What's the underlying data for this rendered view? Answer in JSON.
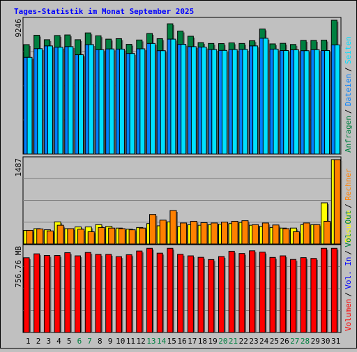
{
  "chart_data": {
    "type": "bar",
    "title": "Tages-Statistik im Monat September 2025",
    "categories": [
      "1",
      "2",
      "3",
      "4",
      "5",
      "6",
      "7",
      "8",
      "9",
      "10",
      "11",
      "12",
      "13",
      "14",
      "15",
      "16",
      "17",
      "18",
      "19",
      "20",
      "21",
      "22",
      "23",
      "24",
      "25",
      "26",
      "27",
      "28",
      "29",
      "30",
      "31"
    ],
    "weekend_days": [
      "6",
      "7",
      "13",
      "14",
      "20",
      "21",
      "27",
      "28"
    ],
    "panels": [
      {
        "id": "requests",
        "y_max_label": "9246",
        "y_max": 9246,
        "series": [
          {
            "name": "Anfragen",
            "color": "#008040",
            "values": [
              7560,
              8210,
              7900,
              8190,
              8230,
              7900,
              8370,
              8170,
              7940,
              7970,
              7580,
              7880,
              8330,
              7970,
              9000,
              8500,
              8140,
              7700,
              7640,
              7630,
              7680,
              7640,
              7830,
              8640,
              7610,
              7650,
              7570,
              7850,
              7850,
              7870,
              9246
            ]
          },
          {
            "name": "Dateien",
            "color": "#0080ff",
            "values": [
              6680,
              7280,
              7470,
              7380,
              7420,
              6860,
              7560,
              7210,
              7260,
              7250,
              6950,
              7270,
              7640,
              7140,
              7940,
              7580,
              7420,
              7390,
              7220,
              7160,
              7220,
              7230,
              7470,
              8000,
              7250,
              7150,
              7200,
              7140,
              7210,
              7150,
              7540
            ]
          },
          {
            "name": "Seiten",
            "color": "#00e0ff",
            "values": [
              6680,
              7280,
              7470,
              7380,
              7420,
              6860,
              7560,
              7210,
              7260,
              7250,
              6950,
              7270,
              7640,
              7140,
              7940,
              7580,
              7420,
              7390,
              7220,
              7160,
              7220,
              7230,
              7470,
              8000,
              7250,
              7150,
              7200,
              7140,
              7210,
              7150,
              7540
            ]
          }
        ],
        "legend": [
          {
            "text": "Anfragen",
            "color": "#008040"
          },
          {
            "text": "Dateien",
            "color": "#0080ff"
          },
          {
            "text": "Seiten",
            "color": "#00e0ff"
          }
        ]
      },
      {
        "id": "visits",
        "y_max_label": "1487",
        "y_max": 1487,
        "series": [
          {
            "name": "Besuche",
            "color": "#ffff00",
            "values": [
              240,
              270,
              250,
              390,
              270,
              300,
              300,
              340,
              310,
              280,
              260,
              290,
              360,
              320,
              390,
              310,
              340,
              330,
              340,
              350,
              360,
              380,
              330,
              310,
              290,
              280,
              280,
              340,
              340,
              725,
              1487
            ]
          },
          {
            "name": "Rechner",
            "color": "#ff8000",
            "values": [
              240,
              265,
              230,
              330,
              270,
              260,
              215,
              290,
              280,
              270,
              250,
              280,
              520,
              420,
              590,
              370,
              400,
              375,
              370,
              385,
              400,
              410,
              340,
              370,
              335,
              270,
              215,
              370,
              340,
              400,
              1487
            ]
          }
        ],
        "legend": [
          {
            "text": "Besuche",
            "color": "#ffff00"
          },
          {
            "text": "Rechner",
            "color": "#ff8000"
          }
        ]
      },
      {
        "id": "volume",
        "y_max_label": "756.76 MB",
        "y_max": 756.76,
        "series": [
          {
            "name": "Volumen",
            "color": "#ff0000",
            "values": [
              665,
              700,
              685,
              685,
              710,
              682,
              712,
              695,
              695,
              675,
              692,
              725,
              749,
              706,
              749,
              696,
              682,
              669,
              649,
              676,
              723,
              703,
              727,
              715,
              668,
              682,
              650,
              666,
              659,
              749,
              749
            ]
          }
        ],
        "legend": [
          {
            "text": "Volumen",
            "color": "#ff0000"
          },
          {
            "text": "Vol. In",
            "color": "#0000ff"
          },
          {
            "text": "Vol. Out",
            "color": "#008040"
          }
        ]
      }
    ],
    "legend_separator": "/"
  }
}
